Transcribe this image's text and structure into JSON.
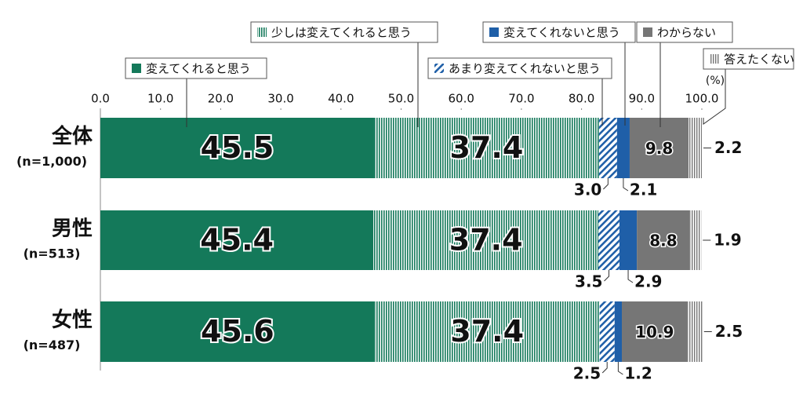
{
  "chart_data": {
    "type": "stacked-bar-horizontal",
    "categories": [
      "全体",
      "男性",
      "女性"
    ],
    "category_sublabels": [
      "(n=1,000)",
      "(n=513)",
      "(n=487)"
    ],
    "unit_label": "(%)",
    "xlim": [
      0,
      100
    ],
    "xticks": [
      {
        "value": 0,
        "label": "0.0"
      },
      {
        "value": 10,
        "label": "10.0"
      },
      {
        "value": 20,
        "label": "20.0"
      },
      {
        "value": 30,
        "label": "30.0"
      },
      {
        "value": 40,
        "label": "40.0"
      },
      {
        "value": 50,
        "label": "50.0"
      },
      {
        "value": 60,
        "label": "60.0"
      },
      {
        "value": 70,
        "label": "70.0"
      },
      {
        "value": 80,
        "label": "80.0"
      },
      {
        "value": 90,
        "label": "90.0"
      },
      {
        "value": 100,
        "label": "100.0"
      }
    ],
    "series": [
      {
        "name": "変えてくれると思う",
        "color": "#14795a",
        "pattern": "solid",
        "label_position": "inside",
        "values": [
          45.5,
          45.4,
          45.6
        ]
      },
      {
        "name": "少しは変えてくれると思う",
        "color": "#14795a",
        "pattern": "vertical-stripes",
        "label_position": "inside",
        "values": [
          37.4,
          37.4,
          37.4
        ]
      },
      {
        "name": "あまり変えてくれないと思う",
        "color": "#1f5fa8",
        "pattern": "diagonal-stripes",
        "label_position": "below-left",
        "values": [
          3.0,
          3.5,
          2.5
        ],
        "value_labels": [
          "3.0",
          "3.5",
          "2.5"
        ]
      },
      {
        "name": "変えてくれないと思う",
        "color": "#1f5fa8",
        "pattern": "solid",
        "label_position": "below-right",
        "values": [
          2.1,
          2.9,
          1.2
        ]
      },
      {
        "name": "わからない",
        "color": "#767676",
        "pattern": "solid",
        "label_position": "inside",
        "values": [
          9.8,
          8.8,
          10.9
        ]
      },
      {
        "name": "答えたくない",
        "color": "#767676",
        "pattern": "vertical-stripes",
        "label_position": "right",
        "values": [
          2.2,
          1.9,
          2.5
        ]
      }
    ]
  }
}
